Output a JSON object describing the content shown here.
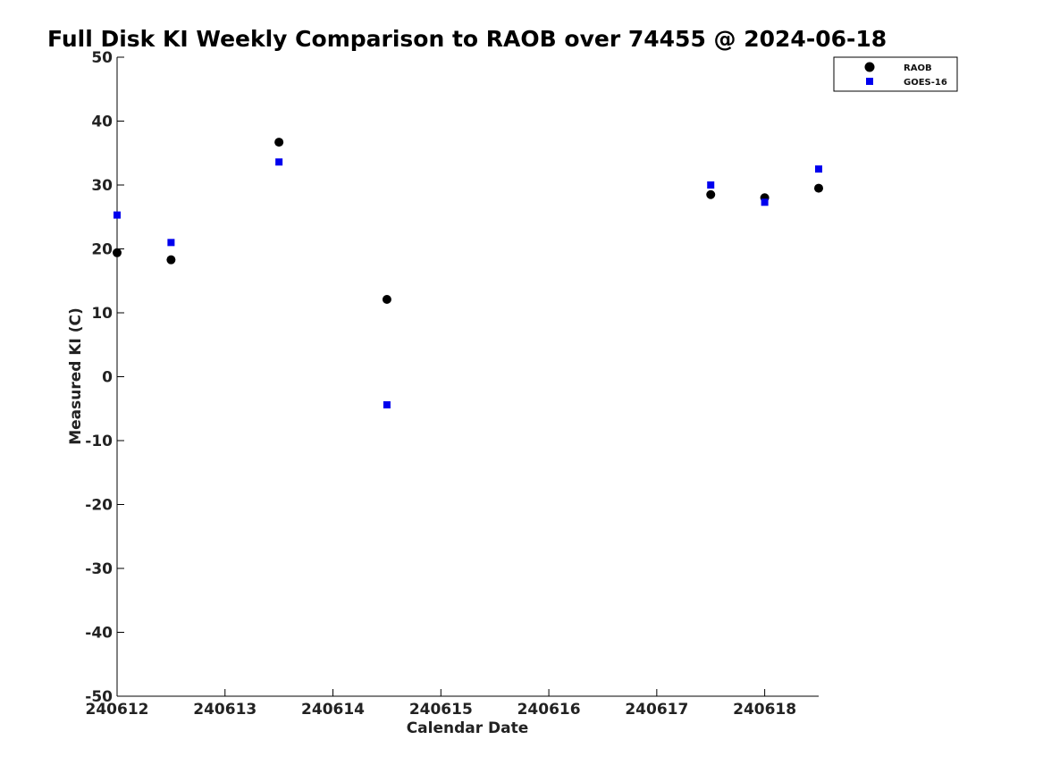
{
  "chart_data": {
    "type": "scatter",
    "title": "Full Disk KI Weekly Comparison to RAOB over 74455 @ 2024-06-18",
    "xlabel": "Calendar Date",
    "ylabel": "Measured KI (C)",
    "xlim": [
      "2024-06-12T00:00",
      "2024-06-18T12:00"
    ],
    "ylim": [
      -50,
      50
    ],
    "x_ticks": [
      {
        "at": "2024-06-12T00:00",
        "label": "240612"
      },
      {
        "at": "2024-06-13T00:00",
        "label": "240613"
      },
      {
        "at": "2024-06-14T00:00",
        "label": "240614"
      },
      {
        "at": "2024-06-15T00:00",
        "label": "240615"
      },
      {
        "at": "2024-06-16T00:00",
        "label": "240616"
      },
      {
        "at": "2024-06-17T00:00",
        "label": "240617"
      },
      {
        "at": "2024-06-18T00:00",
        "label": "240618"
      }
    ],
    "y_ticks": [
      {
        "value": 50,
        "label": "50"
      },
      {
        "value": 40,
        "label": "40"
      },
      {
        "value": 30,
        "label": "30"
      },
      {
        "value": 20,
        "label": "20"
      },
      {
        "value": 10,
        "label": "10"
      },
      {
        "value": 0,
        "label": "0"
      },
      {
        "value": -10,
        "label": "-10"
      },
      {
        "value": -20,
        "label": "-20"
      },
      {
        "value": -30,
        "label": "-30"
      },
      {
        "value": -40,
        "label": "-40"
      },
      {
        "value": -50,
        "label": "-50"
      }
    ],
    "grid": false,
    "legend_position": "top-right",
    "series": [
      {
        "name": "RAOB",
        "marker": "circle",
        "color": "#000000",
        "points": [
          {
            "x": "2024-06-12T00:00",
            "y": 19.4
          },
          {
            "x": "2024-06-12T12:00",
            "y": 18.3
          },
          {
            "x": "2024-06-13T12:00",
            "y": 36.7
          },
          {
            "x": "2024-06-14T12:00",
            "y": 12.1
          },
          {
            "x": "2024-06-17T12:00",
            "y": 28.5
          },
          {
            "x": "2024-06-18T00:00",
            "y": 28.0
          },
          {
            "x": "2024-06-18T12:00",
            "y": 29.5
          }
        ]
      },
      {
        "name": "GOES-16",
        "marker": "square",
        "color": "#0000ee",
        "points": [
          {
            "x": "2024-06-12T00:00",
            "y": 25.3
          },
          {
            "x": "2024-06-12T12:00",
            "y": 21.0
          },
          {
            "x": "2024-06-13T12:00",
            "y": 33.6
          },
          {
            "x": "2024-06-14T12:00",
            "y": -4.4
          },
          {
            "x": "2024-06-17T12:00",
            "y": 30.0
          },
          {
            "x": "2024-06-18T00:00",
            "y": 27.3
          },
          {
            "x": "2024-06-18T12:00",
            "y": 32.5
          }
        ]
      }
    ]
  }
}
